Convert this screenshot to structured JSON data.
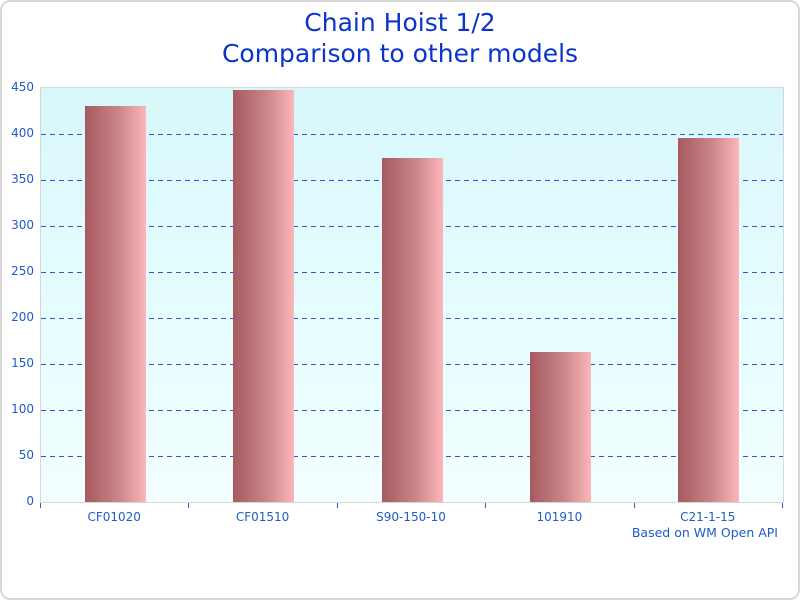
{
  "chart_data": {
    "type": "bar",
    "title": "Chain Hoist 1/2",
    "subtitle": "Comparison to other models",
    "categories": [
      "CF01020",
      "CF01510",
      "S90-150-10",
      "101910",
      "C21-1-15"
    ],
    "values": [
      430,
      448,
      374,
      163,
      396
    ],
    "footnote": "Based on WM Open API",
    "xlabel": "",
    "ylabel": "",
    "ylim": [
      0,
      450
    ],
    "ytick_step": 50,
    "grid": "horizontal-dashed",
    "legend": "none",
    "colors": {
      "title_text": "#0b34cb",
      "axis_label_text": "#1e5cc8",
      "gridline": "#3057d0",
      "tick_mark": "#1b6ad2",
      "plot_border": "#d4d8d8",
      "plot_background_top": "#d8f7fa",
      "plot_background_bottom": "#f3feff",
      "bar_gradient_left": "#a65a5f",
      "bar_gradient_right": "#fdb6ba",
      "frame_border": "#d8d8d8"
    }
  }
}
